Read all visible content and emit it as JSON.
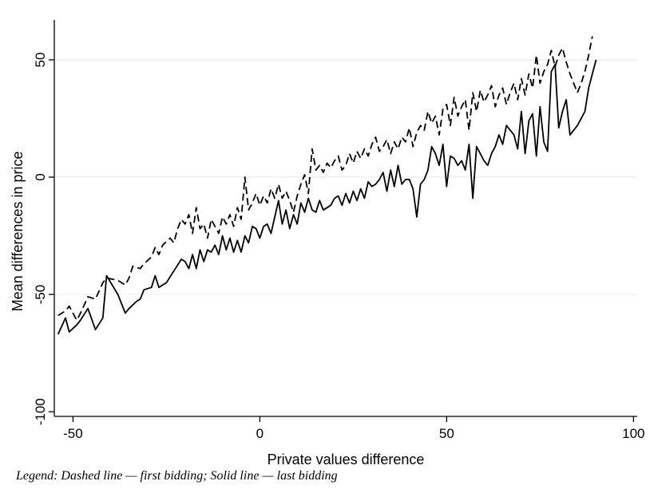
{
  "chart_data": {
    "type": "line",
    "xlabel": "Private values difference",
    "ylabel": "Mean differences in price",
    "xlim": [
      -55,
      101
    ],
    "ylim": [
      -102,
      67
    ],
    "x_ticks": [
      -50,
      0,
      50,
      100
    ],
    "x_tick_labels": [
      "-50",
      "0",
      "50",
      "100"
    ],
    "y_ticks": [
      -100,
      -50,
      0,
      50
    ],
    "y_tick_labels": [
      "-100",
      "-50",
      "0",
      "50"
    ],
    "grid": "horizontal",
    "legend": "none",
    "series": [
      {
        "style": "solid",
        "color": "#000000",
        "points": [
          [
            -54,
            -67
          ],
          [
            -52,
            -60
          ],
          [
            -51,
            -66
          ],
          [
            -49,
            -63
          ],
          [
            -48,
            -61
          ],
          [
            -46,
            -56
          ],
          [
            -44,
            -65
          ],
          [
            -42,
            -60
          ],
          [
            -41,
            -42
          ],
          [
            -38,
            -50
          ],
          [
            -36,
            -58
          ],
          [
            -35,
            -56
          ],
          [
            -33,
            -53
          ],
          [
            -32,
            -52
          ],
          [
            -31,
            -48
          ],
          [
            -29,
            -47
          ],
          [
            -28,
            -42
          ],
          [
            -27,
            -47
          ],
          [
            -25,
            -45
          ],
          [
            -23,
            -40
          ],
          [
            -21,
            -35
          ],
          [
            -20,
            -36
          ],
          [
            -19,
            -39
          ],
          [
            -18,
            -33
          ],
          [
            -17,
            -39
          ],
          [
            -16,
            -31
          ],
          [
            -15,
            -36
          ],
          [
            -14,
            -31
          ],
          [
            -13,
            -32
          ],
          [
            -12,
            -29
          ],
          [
            -11,
            -33
          ],
          [
            -10,
            -25
          ],
          [
            -9,
            -31
          ],
          [
            -8,
            -26
          ],
          [
            -7,
            -32
          ],
          [
            -6,
            -27
          ],
          [
            -5,
            -32
          ],
          [
            -4,
            -25
          ],
          [
            -3,
            -28
          ],
          [
            -2,
            -21
          ],
          [
            -1,
            -22
          ],
          [
            0,
            -26
          ],
          [
            1,
            -21
          ],
          [
            2,
            -20
          ],
          [
            3,
            -24
          ],
          [
            4,
            -17
          ],
          [
            5,
            -10
          ],
          [
            6,
            -20
          ],
          [
            7,
            -14
          ],
          [
            8,
            -22
          ],
          [
            9,
            -16
          ],
          [
            10,
            -20
          ],
          [
            11,
            -11
          ],
          [
            12,
            -15
          ],
          [
            13,
            -9
          ],
          [
            14,
            -14
          ],
          [
            15,
            -15
          ],
          [
            16,
            -10
          ],
          [
            17,
            -14
          ],
          [
            18,
            -13
          ],
          [
            19,
            -12
          ],
          [
            20,
            -9
          ],
          [
            21,
            -8
          ],
          [
            22,
            -12
          ],
          [
            23,
            -7
          ],
          [
            24,
            -11
          ],
          [
            25,
            -6
          ],
          [
            26,
            -10
          ],
          [
            27,
            -5
          ],
          [
            28,
            -9
          ],
          [
            29,
            -2
          ],
          [
            30,
            -4
          ],
          [
            31,
            -3
          ],
          [
            32,
            -1
          ],
          [
            33,
            2
          ],
          [
            34,
            -6
          ],
          [
            35,
            3
          ],
          [
            36,
            -4
          ],
          [
            37,
            5
          ],
          [
            38,
            -3
          ],
          [
            39,
            -1
          ],
          [
            40,
            -1
          ],
          [
            41,
            -5
          ],
          [
            42,
            -17
          ],
          [
            43,
            -3
          ],
          [
            44,
            -1
          ],
          [
            45,
            3
          ],
          [
            46,
            13
          ],
          [
            47,
            10
          ],
          [
            48,
            5
          ],
          [
            49,
            14
          ],
          [
            50,
            -4
          ],
          [
            51,
            9
          ],
          [
            52,
            8
          ],
          [
            53,
            5
          ],
          [
            54,
            7
          ],
          [
            55,
            3
          ],
          [
            56,
            14
          ],
          [
            57,
            -9
          ],
          [
            58,
            13
          ],
          [
            59,
            10
          ],
          [
            60,
            7
          ],
          [
            61,
            5
          ],
          [
            62,
            10
          ],
          [
            63,
            13
          ],
          [
            64,
            18
          ],
          [
            65,
            14
          ],
          [
            66,
            22
          ],
          [
            67,
            20
          ],
          [
            68,
            18
          ],
          [
            69,
            12
          ],
          [
            70,
            28
          ],
          [
            71,
            10
          ],
          [
            72,
            24
          ],
          [
            73,
            27
          ],
          [
            74,
            9
          ],
          [
            75,
            30
          ],
          [
            76,
            15
          ],
          [
            77,
            11
          ],
          [
            78,
            45
          ],
          [
            79,
            48
          ],
          [
            80,
            21
          ],
          [
            81,
            28
          ],
          [
            82,
            33
          ],
          [
            83,
            18
          ],
          [
            85,
            22
          ],
          [
            87,
            28
          ],
          [
            88,
            38
          ],
          [
            89,
            44
          ],
          [
            90,
            50
          ]
        ]
      },
      {
        "style": "dashed",
        "color": "#000000",
        "points": [
          [
            -54,
            -59
          ],
          [
            -52,
            -57
          ],
          [
            -51,
            -55
          ],
          [
            -49,
            -61
          ],
          [
            -48,
            -58
          ],
          [
            -46,
            -51
          ],
          [
            -44,
            -52
          ],
          [
            -42,
            -45
          ],
          [
            -41,
            -43
          ],
          [
            -38,
            -44
          ],
          [
            -36,
            -46
          ],
          [
            -35,
            -43
          ],
          [
            -34,
            -38
          ],
          [
            -32,
            -39
          ],
          [
            -31,
            -37
          ],
          [
            -29,
            -34
          ],
          [
            -28,
            -30
          ],
          [
            -27,
            -33
          ],
          [
            -26,
            -29
          ],
          [
            -24,
            -26
          ],
          [
            -23,
            -28
          ],
          [
            -22,
            -22
          ],
          [
            -21,
            -18
          ],
          [
            -20,
            -20
          ],
          [
            -19,
            -16
          ],
          [
            -18,
            -24
          ],
          [
            -17,
            -13
          ],
          [
            -16,
            -22
          ],
          [
            -15,
            -20
          ],
          [
            -14,
            -26
          ],
          [
            -13,
            -18
          ],
          [
            -12,
            -21
          ],
          [
            -11,
            -24
          ],
          [
            -10,
            -17
          ],
          [
            -9,
            -20
          ],
          [
            -8,
            -16
          ],
          [
            -7,
            -21
          ],
          [
            -6,
            -13
          ],
          [
            -5,
            -18
          ],
          [
            -4,
            0
          ],
          [
            -3,
            -14
          ],
          [
            -2,
            -11
          ],
          [
            -1,
            -7
          ],
          [
            0,
            -12
          ],
          [
            1,
            -8
          ],
          [
            2,
            -11
          ],
          [
            3,
            -5
          ],
          [
            4,
            -9
          ],
          [
            5,
            -3
          ],
          [
            6,
            -9
          ],
          [
            7,
            -6
          ],
          [
            8,
            -10
          ],
          [
            9,
            -15
          ],
          [
            10,
            -8
          ],
          [
            11,
            -3
          ],
          [
            12,
            1
          ],
          [
            13,
            -7
          ],
          [
            14,
            12
          ],
          [
            15,
            3
          ],
          [
            16,
            5
          ],
          [
            17,
            2
          ],
          [
            18,
            6
          ],
          [
            19,
            4
          ],
          [
            20,
            7
          ],
          [
            21,
            9
          ],
          [
            22,
            3
          ],
          [
            23,
            5
          ],
          [
            24,
            10
          ],
          [
            25,
            6
          ],
          [
            26,
            11
          ],
          [
            27,
            8
          ],
          [
            28,
            12
          ],
          [
            29,
            9
          ],
          [
            30,
            14
          ],
          [
            31,
            17
          ],
          [
            32,
            11
          ],
          [
            33,
            13
          ],
          [
            34,
            16
          ],
          [
            35,
            10
          ],
          [
            36,
            15
          ],
          [
            37,
            12
          ],
          [
            38,
            17
          ],
          [
            39,
            15
          ],
          [
            40,
            21
          ],
          [
            41,
            13
          ],
          [
            42,
            19
          ],
          [
            43,
            22
          ],
          [
            44,
            20
          ],
          [
            45,
            28
          ],
          [
            46,
            23
          ],
          [
            47,
            26
          ],
          [
            48,
            18
          ],
          [
            49,
            29
          ],
          [
            50,
            31
          ],
          [
            51,
            22
          ],
          [
            52,
            34
          ],
          [
            53,
            26
          ],
          [
            54,
            30
          ],
          [
            55,
            33
          ],
          [
            56,
            20
          ],
          [
            57,
            36
          ],
          [
            58,
            28
          ],
          [
            59,
            37
          ],
          [
            60,
            32
          ],
          [
            61,
            35
          ],
          [
            62,
            39
          ],
          [
            63,
            30
          ],
          [
            64,
            35
          ],
          [
            65,
            38
          ],
          [
            66,
            31
          ],
          [
            67,
            36
          ],
          [
            68,
            40
          ],
          [
            69,
            33
          ],
          [
            70,
            42
          ],
          [
            71,
            35
          ],
          [
            72,
            44
          ],
          [
            73,
            38
          ],
          [
            74,
            52
          ],
          [
            75,
            40
          ],
          [
            76,
            45
          ],
          [
            77,
            48
          ],
          [
            78,
            54
          ],
          [
            79,
            47
          ],
          [
            80,
            52
          ],
          [
            81,
            55
          ],
          [
            82,
            49
          ],
          [
            83,
            44
          ],
          [
            85,
            36
          ],
          [
            86,
            40
          ],
          [
            87,
            45
          ],
          [
            88,
            52
          ],
          [
            89,
            60
          ]
        ]
      }
    ]
  },
  "caption_text": "Legend: Dashed line — first bidding; Solid line — last bidding"
}
